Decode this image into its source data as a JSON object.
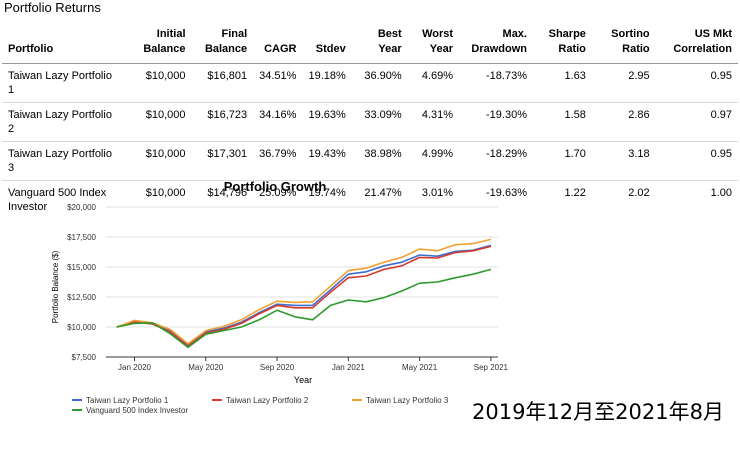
{
  "page": {
    "section_title": "Portfolio Returns",
    "caption": "2019年12月至2021年8月"
  },
  "table": {
    "headers": [
      "Portfolio",
      "Initial\nBalance",
      "Final\nBalance",
      "CAGR",
      "Stdev",
      "Best\nYear",
      "Worst\nYear",
      "Max.\nDrawdown",
      "Sharpe\nRatio",
      "Sortino\nRatio",
      "US Mkt\nCorrelation"
    ],
    "rows": [
      [
        "Taiwan Lazy Portfolio 1",
        "$10,000",
        "$16,801",
        "34.51%",
        "19.18%",
        "36.90%",
        "4.69%",
        "-18.73%",
        "1.63",
        "2.95",
        "0.95"
      ],
      [
        "Taiwan Lazy Portfolio 2",
        "$10,000",
        "$16,723",
        "34.16%",
        "19.63%",
        "33.09%",
        "4.31%",
        "-19.30%",
        "1.58",
        "2.86",
        "0.97"
      ],
      [
        "Taiwan Lazy Portfolio 3",
        "$10,000",
        "$17,301",
        "36.79%",
        "19.43%",
        "38.98%",
        "4.99%",
        "-18.29%",
        "1.70",
        "3.18",
        "0.95"
      ],
      [
        "Vanguard 500 Index Investor",
        "$10,000",
        "$14,796",
        "25.09%",
        "19.74%",
        "21.47%",
        "3.01%",
        "-19.63%",
        "1.22",
        "2.02",
        "1.00"
      ]
    ]
  },
  "chart_data": {
    "type": "line",
    "title": "Portfolio Growth",
    "xlabel": "Year",
    "ylabel": "Portfolio Balance ($)",
    "ylim": [
      7500,
      20000
    ],
    "yticks": [
      7500,
      10000,
      12500,
      15000,
      17500,
      20000
    ],
    "ytick_labels": [
      "$7,500",
      "$10,000",
      "$12,500",
      "$15,000",
      "$17,500",
      "$20,000"
    ],
    "xticks": [
      1,
      5,
      9,
      13,
      17,
      21
    ],
    "xtick_labels": [
      "Jan 2020",
      "May 2020",
      "Sep 2020",
      "Jan 2021",
      "May 2021",
      "Sep 2021"
    ],
    "x": [
      0,
      1,
      2,
      3,
      4,
      5,
      6,
      7,
      8,
      9,
      10,
      11,
      12,
      13,
      14,
      15,
      16,
      17,
      18,
      19,
      20,
      21
    ],
    "series": [
      {
        "name": "Taiwan Lazy Portfolio 1",
        "color": "#3a6fd0",
        "values": [
          10000,
          10450,
          10300,
          9700,
          8500,
          9600,
          9900,
          10400,
          11200,
          11900,
          11800,
          11800,
          13100,
          14400,
          14600,
          15100,
          15400,
          16000,
          15900,
          16300,
          16400,
          16801
        ]
      },
      {
        "name": "Taiwan Lazy Portfolio 2",
        "color": "#d9382f",
        "values": [
          10000,
          10400,
          10250,
          9600,
          8400,
          9500,
          9800,
          10300,
          11100,
          11800,
          11600,
          11600,
          12900,
          14100,
          14250,
          14800,
          15100,
          15800,
          15750,
          16200,
          16350,
          16723
        ]
      },
      {
        "name": "Taiwan Lazy Portfolio 3",
        "color": "#f0a030",
        "values": [
          10000,
          10550,
          10350,
          9800,
          8600,
          9700,
          10050,
          10600,
          11450,
          12150,
          12050,
          12100,
          13400,
          14700,
          14900,
          15400,
          15800,
          16500,
          16350,
          16850,
          16950,
          17301
        ]
      },
      {
        "name": "Vanguard 500 Index Investor",
        "color": "#2e9a2e",
        "values": [
          10000,
          10300,
          10350,
          9450,
          8300,
          9400,
          9700,
          10000,
          10600,
          11400,
          10850,
          10600,
          11800,
          12250,
          12100,
          12450,
          13000,
          13650,
          13750,
          14100,
          14400,
          14796
        ]
      }
    ],
    "legend_position": "bottom"
  }
}
